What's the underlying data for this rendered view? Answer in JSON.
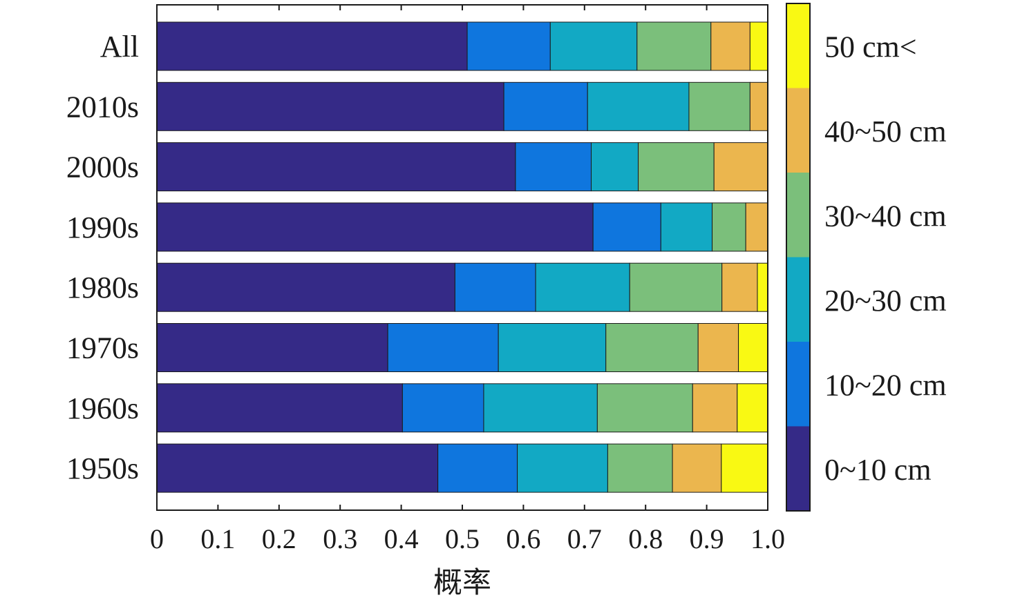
{
  "chart_data": {
    "type": "bar",
    "orientation": "horizontal",
    "stacked": true,
    "xlabel": "概率",
    "ylabel": "",
    "xlim": [
      0,
      1.0
    ],
    "x_ticks": [
      "0",
      "0.1",
      "0.2",
      "0.3",
      "0.4",
      "0.5",
      "0.6",
      "0.7",
      "0.8",
      "0.9",
      "1.0"
    ],
    "categories": [
      "All",
      "2010s",
      "2000s",
      "1990s",
      "1980s",
      "1970s",
      "1960s",
      "1950s"
    ],
    "series": [
      {
        "name": "0~10 cm",
        "color": "#352a87",
        "values": [
          0.508,
          0.568,
          0.587,
          0.714,
          0.488,
          0.378,
          0.402,
          0.46
        ]
      },
      {
        "name": "10~20 cm",
        "color": "#0f76de",
        "values": [
          0.136,
          0.137,
          0.124,
          0.111,
          0.132,
          0.181,
          0.133,
          0.13
        ]
      },
      {
        "name": "20~30 cm",
        "color": "#12a9c4",
        "values": [
          0.142,
          0.166,
          0.077,
          0.084,
          0.154,
          0.176,
          0.186,
          0.148
        ]
      },
      {
        "name": "30~40 cm",
        "color": "#7bbf7b",
        "values": [
          0.121,
          0.1,
          0.124,
          0.055,
          0.151,
          0.151,
          0.156,
          0.106
        ]
      },
      {
        "name": "40~50 cm",
        "color": "#ebb64e",
        "values": [
          0.064,
          0.029,
          0.088,
          0.036,
          0.058,
          0.066,
          0.073,
          0.08
        ]
      },
      {
        "name": "50 cm<",
        "color": "#f9f913",
        "values": [
          0.029,
          0.0,
          0.0,
          0.0,
          0.017,
          0.048,
          0.05,
          0.076
        ]
      }
    ],
    "legend": {
      "type": "colorbar",
      "placement": "right",
      "labels_top_to_bottom": [
        "50 cm<",
        "40~50 cm",
        "30~40 cm",
        "20~30 cm",
        "10~20 cm",
        "0~10 cm"
      ]
    },
    "grid": false
  }
}
